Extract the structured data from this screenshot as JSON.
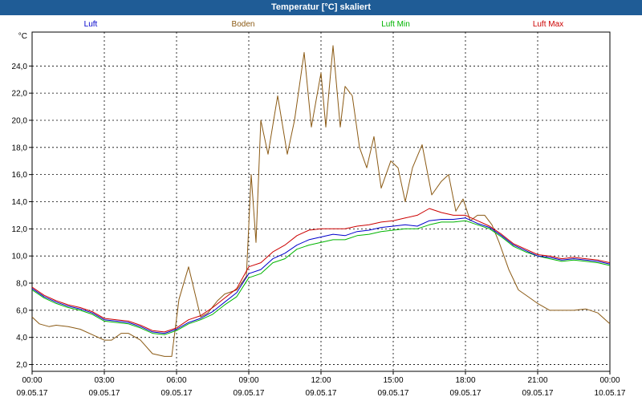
{
  "window": {
    "title": "Temperatur [°C] skaliert"
  },
  "chart_data": {
    "type": "line",
    "title": "Temperatur [°C] skaliert",
    "ylabel": "°C",
    "ylim": [
      1.5,
      26.5
    ],
    "yticks": [
      2.0,
      4.0,
      6.0,
      8.0,
      10.0,
      12.0,
      14.0,
      16.0,
      18.0,
      20.0,
      22.0,
      24.0
    ],
    "ytick_labels": [
      "2,0",
      "4,0",
      "6,0",
      "8,0",
      "10,0",
      "12,0",
      "14,0",
      "16,0",
      "18,0",
      "20,0",
      "22,0",
      "24,0"
    ],
    "xlim_hours": [
      0,
      24
    ],
    "xticks": [
      {
        "hour": 0,
        "time": "00:00",
        "date": "09.05.17"
      },
      {
        "hour": 3,
        "time": "03:00",
        "date": "09.05.17"
      },
      {
        "hour": 6,
        "time": "06:00",
        "date": "09.05.17"
      },
      {
        "hour": 9,
        "time": "09:00",
        "date": "09.05.17"
      },
      {
        "hour": 12,
        "time": "12:00",
        "date": "09.05.17"
      },
      {
        "hour": 15,
        "time": "15:00",
        "date": "09.05.17"
      },
      {
        "hour": 18,
        "time": "18:00",
        "date": "09.05.17"
      },
      {
        "hour": 21,
        "time": "21:00",
        "date": "09.05.17"
      },
      {
        "hour": 24,
        "time": "00:00",
        "date": "10.05.17"
      }
    ],
    "grid": true,
    "legend_position": "top",
    "series": [
      {
        "name": "Luft",
        "color": "#0000cc",
        "x": [
          0,
          0.5,
          1,
          1.5,
          2,
          2.5,
          3,
          3.5,
          4,
          4.5,
          5,
          5.5,
          6,
          6.5,
          7,
          7.5,
          8,
          8.5,
          9,
          9.5,
          10,
          10.5,
          11,
          11.5,
          12,
          12.5,
          13,
          13.5,
          14,
          14.5,
          15,
          15.5,
          16,
          16.5,
          17,
          17.5,
          18,
          18.5,
          19,
          19.5,
          20,
          20.5,
          21,
          21.5,
          22,
          22.5,
          23,
          23.5,
          24
        ],
        "y": [
          7.6,
          7.0,
          6.6,
          6.3,
          6.1,
          5.8,
          5.3,
          5.2,
          5.1,
          4.8,
          4.4,
          4.3,
          4.6,
          5.1,
          5.4,
          5.9,
          6.6,
          7.3,
          8.7,
          9.0,
          9.8,
          10.2,
          10.8,
          11.2,
          11.4,
          11.6,
          11.5,
          11.8,
          11.9,
          12.1,
          12.2,
          12.3,
          12.2,
          12.6,
          12.7,
          12.7,
          12.8,
          12.4,
          12.1,
          11.5,
          10.8,
          10.4,
          10.0,
          9.9,
          9.7,
          9.8,
          9.7,
          9.6,
          9.4
        ]
      },
      {
        "name": "Boden",
        "color": "#8b5a14",
        "x": [
          0,
          0.3,
          0.7,
          1,
          1.5,
          2,
          2.5,
          3,
          3.3,
          3.7,
          4,
          4.5,
          5,
          5.5,
          5.8,
          6.1,
          6.5,
          7,
          7.3,
          7.7,
          8,
          8.5,
          8.9,
          9.1,
          9.3,
          9.5,
          9.8,
          10.2,
          10.6,
          10.9,
          11.3,
          11.6,
          12,
          12.2,
          12.5,
          12.8,
          13,
          13.3,
          13.6,
          13.9,
          14.2,
          14.5,
          14.9,
          15.2,
          15.5,
          15.8,
          16.2,
          16.6,
          17,
          17.3,
          17.6,
          17.9,
          18.2,
          18.5,
          18.8,
          19.1,
          19.4,
          19.8,
          20.2,
          20.6,
          21,
          21.5,
          22,
          22.5,
          23,
          23.5,
          24
        ],
        "y": [
          5.5,
          5.0,
          4.8,
          4.9,
          4.8,
          4.6,
          4.2,
          3.8,
          3.8,
          4.3,
          4.3,
          3.8,
          2.8,
          2.6,
          2.6,
          6.8,
          9.2,
          5.5,
          5.8,
          6.7,
          7.2,
          7.5,
          8.5,
          16.0,
          11.0,
          20.0,
          17.5,
          21.8,
          17.5,
          20.0,
          25.0,
          19.5,
          23.5,
          19.5,
          25.5,
          19.5,
          22.5,
          21.8,
          18.0,
          16.5,
          18.8,
          15.0,
          17.0,
          16.5,
          14.0,
          16.5,
          18.2,
          14.5,
          15.5,
          16.0,
          13.3,
          14.2,
          12.6,
          13.0,
          13.0,
          12.3,
          11.0,
          9.0,
          7.5,
          7.0,
          6.5,
          6.0,
          6.0,
          6.0,
          6.1,
          5.8,
          5.0
        ]
      },
      {
        "name": "Luft Min",
        "color": "#00b400",
        "x": [
          0,
          0.5,
          1,
          1.5,
          2,
          2.5,
          3,
          3.5,
          4,
          4.5,
          5,
          5.5,
          6,
          6.5,
          7,
          7.5,
          8,
          8.5,
          9,
          9.5,
          10,
          10.5,
          11,
          11.5,
          12,
          12.5,
          13,
          13.5,
          14,
          14.5,
          15,
          15.5,
          16,
          16.5,
          17,
          17.5,
          18,
          18.5,
          19,
          19.5,
          20,
          20.5,
          21,
          21.5,
          22,
          22.5,
          23,
          23.5,
          24
        ],
        "y": [
          7.5,
          6.9,
          6.5,
          6.2,
          6.0,
          5.7,
          5.2,
          5.1,
          5.0,
          4.7,
          4.3,
          4.2,
          4.5,
          5.0,
          5.3,
          5.7,
          6.4,
          7.0,
          8.4,
          8.7,
          9.5,
          9.8,
          10.5,
          10.8,
          11.0,
          11.2,
          11.2,
          11.5,
          11.6,
          11.8,
          11.9,
          12.0,
          12.0,
          12.3,
          12.5,
          12.5,
          12.6,
          12.3,
          12.0,
          11.4,
          10.7,
          10.3,
          10.0,
          9.8,
          9.6,
          9.7,
          9.6,
          9.5,
          9.3
        ]
      },
      {
        "name": "Luft Max",
        "color": "#cc0000",
        "x": [
          0,
          0.5,
          1,
          1.5,
          2,
          2.5,
          3,
          3.5,
          4,
          4.5,
          5,
          5.5,
          6,
          6.5,
          7,
          7.5,
          8,
          8.5,
          9,
          9.5,
          10,
          10.5,
          11,
          11.5,
          12,
          12.5,
          13,
          13.5,
          14,
          14.5,
          15,
          15.5,
          16,
          16.5,
          17,
          17.5,
          18,
          18.5,
          19,
          19.5,
          20,
          20.5,
          21,
          21.5,
          22,
          22.5,
          23,
          23.5,
          24
        ],
        "y": [
          7.7,
          7.1,
          6.7,
          6.4,
          6.2,
          5.9,
          5.4,
          5.3,
          5.2,
          4.9,
          4.5,
          4.4,
          4.7,
          5.3,
          5.6,
          6.2,
          6.9,
          7.6,
          9.2,
          9.5,
          10.3,
          10.8,
          11.5,
          11.9,
          12.0,
          12.0,
          12.0,
          12.2,
          12.3,
          12.5,
          12.6,
          12.8,
          13.0,
          13.5,
          13.2,
          13.0,
          13.0,
          12.6,
          12.2,
          11.6,
          10.9,
          10.5,
          10.1,
          10.0,
          9.8,
          9.9,
          9.8,
          9.7,
          9.5
        ]
      }
    ]
  }
}
